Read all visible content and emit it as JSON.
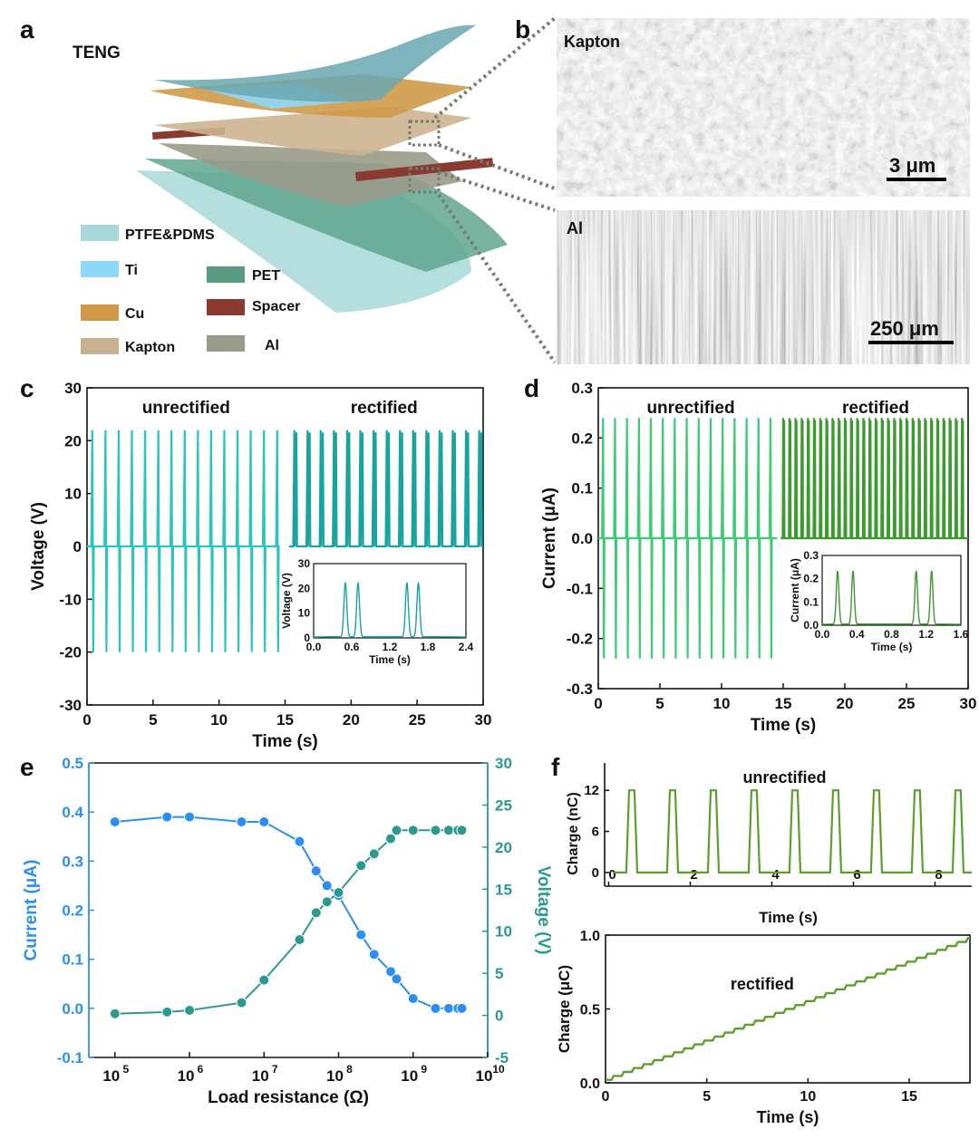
{
  "panel_letters": [
    "a",
    "b",
    "c",
    "d",
    "e",
    "f"
  ],
  "panel_a": {
    "title": "TENG",
    "legend": [
      {
        "label": "PTFE&PDMS",
        "color": "#a8d8d8"
      },
      {
        "label": "Ti",
        "color": "#8fd8f8"
      },
      {
        "label": "PET",
        "color": "#5a9a80"
      },
      {
        "label": "Cu",
        "color": "#cf9a48"
      },
      {
        "label": "Spacer",
        "color": "#8a3a30"
      },
      {
        "label": "Kapton",
        "color": "#c8b090"
      },
      {
        "label": "Al",
        "color": "#9a9a8a"
      }
    ]
  },
  "panel_b": {
    "top_label": "Kapton",
    "top_scale": "3 μm",
    "bottom_label": "Al",
    "bottom_scale": "250 μm"
  },
  "chart_data": [
    {
      "id": "c",
      "type": "line",
      "xlabel": "Time (s)",
      "ylabel": "Voltage (V)",
      "xlim": [
        0,
        30
      ],
      "ylim": [
        -30,
        30
      ],
      "xticks": [
        "0",
        "5",
        "10",
        "15",
        "20",
        "25",
        "30"
      ],
      "yticks": [
        "-30",
        "-20",
        "-10",
        "0",
        "10",
        "20",
        "30"
      ],
      "annotations": [
        "unrectified",
        "rectified"
      ],
      "series": [
        {
          "name": "unrectified",
          "x_range": [
            0,
            14.5
          ],
          "peak": 22,
          "trough": -20,
          "period_s": 1.0,
          "color": "#2cc4c0"
        },
        {
          "name": "rectified",
          "x_range": [
            15.3,
            30
          ],
          "peak": 22,
          "trough": 0,
          "period_s": 1.0,
          "color": "#17a39e"
        }
      ],
      "inset": {
        "xlabel": "Time (s)",
        "ylabel": "Voltage (V)",
        "xlim": [
          0,
          2.4
        ],
        "ylim": [
          0,
          30
        ],
        "xticks": [
          "0.0",
          "0.6",
          "1.2",
          "1.8",
          "2.4"
        ],
        "yticks": [
          "0",
          "10",
          "20",
          "30"
        ],
        "peaks_x": [
          0.5,
          0.7,
          1.47,
          1.65
        ],
        "peak": 22
      }
    },
    {
      "id": "d",
      "type": "line",
      "xlabel": "Time (s)",
      "ylabel": "Current (μA)",
      "xlim": [
        0,
        30
      ],
      "ylim": [
        -0.3,
        0.3
      ],
      "xticks": [
        "0",
        "5",
        "10",
        "15",
        "20",
        "25",
        "30"
      ],
      "yticks": [
        "-0.3",
        "-0.2",
        "-0.1",
        "0.0",
        "0.1",
        "0.2",
        "0.3"
      ],
      "annotations": [
        "unrectified",
        "rectified"
      ],
      "series": [
        {
          "name": "unrectified",
          "x_range": [
            0,
            14.5
          ],
          "peak": 0.24,
          "trough": -0.24,
          "period_s": 0.97,
          "color": "#3ecb75"
        },
        {
          "name": "rectified",
          "x_range": [
            14.8,
            30
          ],
          "peak": 0.24,
          "trough": 0,
          "period_s": 0.5,
          "color": "#3c9a30"
        }
      ],
      "inset": {
        "xlabel": "Time (s)",
        "ylabel": "Current (μA)",
        "xlim": [
          0,
          1.8
        ],
        "ylim": [
          0,
          0.3
        ],
        "xticks": [
          "0.0",
          "0.4",
          "0.8",
          "1.2",
          "1.6"
        ],
        "yticks": [
          "0.0",
          "0.1",
          "0.2",
          "0.3"
        ],
        "peaks_x": [
          0.2,
          0.4,
          1.22,
          1.42
        ],
        "peak": 0.23
      }
    },
    {
      "id": "e",
      "type": "line",
      "xlabel": "Load resistance (Ω)",
      "ylabel": "Current (μA)",
      "y2label": "Voltage (V)",
      "xscale": "log",
      "xlim_log10": [
        4.65,
        10
      ],
      "ylim": [
        -0.1,
        0.5
      ],
      "y2lim": [
        -5,
        30
      ],
      "xticks": [
        {
          "b": "10",
          "e": "5"
        },
        {
          "b": "10",
          "e": "6"
        },
        {
          "b": "10",
          "e": "7"
        },
        {
          "b": "10",
          "e": "8"
        },
        {
          "b": "10",
          "e": "9"
        },
        {
          "b": "10",
          "e": "10"
        }
      ],
      "yticks": [
        "-0.1",
        "0.0",
        "0.1",
        "0.2",
        "0.3",
        "0.4",
        "0.5"
      ],
      "y2ticks": [
        "-5",
        "0",
        "5",
        "10",
        "15",
        "20",
        "25",
        "30"
      ],
      "x": [
        100000,
        500000,
        1000000,
        5000000,
        10000000,
        30000000,
        50000000,
        70000000,
        100000000,
        200000000,
        300000000,
        500000000,
        600000000,
        1000000000,
        2000000000,
        3000000000,
        4000000000,
        4500000000
      ],
      "series": [
        {
          "name": "Current",
          "axis": "left",
          "color": "#2a8ff0",
          "values": [
            0.38,
            0.39,
            0.39,
            0.38,
            0.38,
            0.34,
            0.28,
            0.25,
            0.23,
            0.15,
            0.11,
            0.075,
            0.06,
            0.02,
            0.0,
            0.0,
            0.0,
            0.0
          ]
        },
        {
          "name": "Voltage",
          "axis": "right",
          "color": "#2a9a90",
          "values": [
            0.2,
            0.4,
            0.6,
            1.5,
            4.2,
            9.0,
            12.2,
            13.5,
            14.6,
            17.8,
            19.2,
            21.0,
            22.0,
            22.0,
            22.0,
            22.0,
            22.0,
            22.0
          ]
        }
      ]
    },
    {
      "id": "f-top",
      "type": "line",
      "xlabel": "Time (s)",
      "ylabel": "Charge (nC)",
      "xlim": [
        -0.1,
        8.9
      ],
      "ylim": [
        -2,
        16
      ],
      "xticks": [
        "0",
        "2",
        "4",
        "6",
        "8"
      ],
      "yticks": [
        "0",
        "6",
        "12"
      ],
      "annotations": [
        "unrectified"
      ],
      "series": [
        {
          "name": "unrectified",
          "peak": 12,
          "base": 0,
          "start": 0.55,
          "period_s": 1.0,
          "color": "#5aa02a"
        }
      ]
    },
    {
      "id": "f-bottom",
      "type": "line",
      "xlabel": "Time (s)",
      "ylabel": "Charge (μC)",
      "xlim": [
        0,
        18
      ],
      "ylim": [
        0,
        1.0
      ],
      "xticks": [
        "0",
        "5",
        "10",
        "15"
      ],
      "yticks": [
        "0.0",
        "0.5",
        "1.0"
      ],
      "annotations": [
        "rectified"
      ],
      "series": [
        {
          "name": "rectified",
          "start": 0.02,
          "end": 0.98,
          "color": "#5aa02a"
        }
      ]
    }
  ]
}
